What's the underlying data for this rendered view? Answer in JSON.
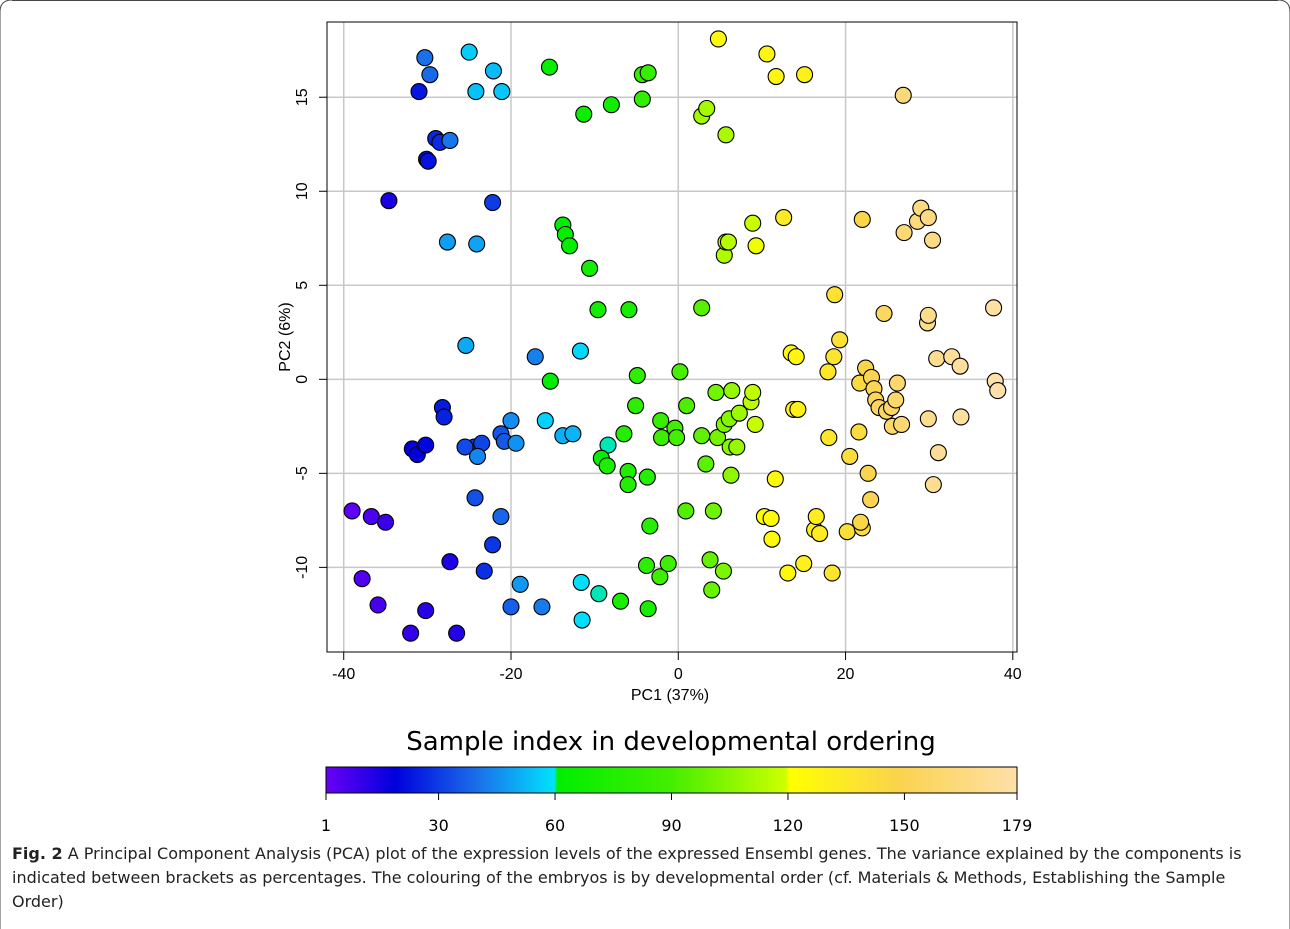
{
  "figure": {
    "label": "Fig. 2",
    "caption": "A Principal Component Analysis (PCA) plot of the expression levels of the expressed Ensembl genes. The variance explained by the components is indicated between brackets as percentages. The colouring of the embryos is by developmental order (cf. Materials & Methods, Establishing the Sample Order)"
  },
  "chart_data": {
    "type": "scatter",
    "xlabel": "PC1 (37%)",
    "ylabel": "PC2 (6%)",
    "xlim": [
      -42,
      40.5
    ],
    "ylim": [
      -14.5,
      19
    ],
    "xticks": [
      -40,
      -20,
      0,
      20,
      40
    ],
    "yticks": [
      -10,
      -5,
      0,
      5,
      10,
      15
    ],
    "grid": true,
    "colorbar": {
      "title": "Sample index in developmental ordering",
      "min": 1,
      "max": 179,
      "ticks": [
        1,
        30,
        60,
        90,
        120,
        150,
        179
      ],
      "stops": [
        {
          "at": 0.0,
          "color": "#6a00f5"
        },
        {
          "at": 0.1,
          "color": "#0000dd"
        },
        {
          "at": 0.22,
          "color": "#1a70ea"
        },
        {
          "at": 0.33,
          "color": "#00e2ff"
        },
        {
          "at": 0.335,
          "color": "#00ee00"
        },
        {
          "at": 0.5,
          "color": "#44ee00"
        },
        {
          "at": 0.665,
          "color": "#ccff00"
        },
        {
          "at": 0.67,
          "color": "#ffff00"
        },
        {
          "at": 0.83,
          "color": "#fad34e"
        },
        {
          "at": 1.0,
          "color": "#ffe0a8"
        }
      ]
    },
    "points": [
      {
        "x": -39.0,
        "y": -7.0,
        "c": 3
      },
      {
        "x": -37.8,
        "y": -10.6,
        "c": 5
      },
      {
        "x": -36.7,
        "y": -7.3,
        "c": 6
      },
      {
        "x": -35.9,
        "y": -12.0,
        "c": 7
      },
      {
        "x": -35.0,
        "y": -7.6,
        "c": 9
      },
      {
        "x": -32.0,
        "y": -13.5,
        "c": 10
      },
      {
        "x": -30.2,
        "y": -12.3,
        "c": 12
      },
      {
        "x": -26.5,
        "y": -13.5,
        "c": 13
      },
      {
        "x": -27.3,
        "y": -9.7,
        "c": 14
      },
      {
        "x": -34.6,
        "y": 9.5,
        "c": 15
      },
      {
        "x": -31.8,
        "y": -3.7,
        "c": 18
      },
      {
        "x": -31.2,
        "y": -4.0,
        "c": 19
      },
      {
        "x": -30.2,
        "y": -3.5,
        "c": 20
      },
      {
        "x": -30.1,
        "y": 11.7,
        "c": 21
      },
      {
        "x": -29.9,
        "y": 11.6,
        "c": 22
      },
      {
        "x": -31.0,
        "y": 15.3,
        "c": 23
      },
      {
        "x": -28.2,
        "y": -1.5,
        "c": 24
      },
      {
        "x": -28.0,
        "y": -2.0,
        "c": 25
      },
      {
        "x": -29.0,
        "y": 12.8,
        "c": 26
      },
      {
        "x": -28.5,
        "y": 12.6,
        "c": 27
      },
      {
        "x": -23.2,
        "y": -10.2,
        "c": 28
      },
      {
        "x": -22.2,
        "y": -8.8,
        "c": 29
      },
      {
        "x": -22.2,
        "y": 9.4,
        "c": 30
      },
      {
        "x": -24.4,
        "y": -3.6,
        "c": 31
      },
      {
        "x": -23.5,
        "y": -3.4,
        "c": 32
      },
      {
        "x": -25.5,
        "y": -3.6,
        "c": 33
      },
      {
        "x": -24.3,
        "y": -6.3,
        "c": 34
      },
      {
        "x": -21.2,
        "y": -2.9,
        "c": 35
      },
      {
        "x": -20.8,
        "y": -3.3,
        "c": 36
      },
      {
        "x": -20.0,
        "y": -12.1,
        "c": 37
      },
      {
        "x": -21.2,
        "y": -7.3,
        "c": 38
      },
      {
        "x": -29.7,
        "y": 16.2,
        "c": 39
      },
      {
        "x": -30.3,
        "y": 17.1,
        "c": 40
      },
      {
        "x": -27.3,
        "y": 12.7,
        "c": 41
      },
      {
        "x": -16.3,
        "y": -12.1,
        "c": 42
      },
      {
        "x": -17.1,
        "y": 1.2,
        "c": 43
      },
      {
        "x": -24.0,
        "y": -4.1,
        "c": 44
      },
      {
        "x": -20.0,
        "y": -2.2,
        "c": 45
      },
      {
        "x": -19.4,
        "y": -3.4,
        "c": 46
      },
      {
        "x": -18.9,
        "y": -10.9,
        "c": 47
      },
      {
        "x": -27.6,
        "y": 7.3,
        "c": 48
      },
      {
        "x": -24.1,
        "y": 7.2,
        "c": 49
      },
      {
        "x": -25.4,
        "y": 1.8,
        "c": 50
      },
      {
        "x": -13.8,
        "y": -3.0,
        "c": 51
      },
      {
        "x": -12.6,
        "y": -2.9,
        "c": 52
      },
      {
        "x": -22.1,
        "y": 16.4,
        "c": 53
      },
      {
        "x": -24.2,
        "y": 15.3,
        "c": 54
      },
      {
        "x": -21.1,
        "y": 15.3,
        "c": 55
      },
      {
        "x": -25.0,
        "y": 17.4,
        "c": 56
      },
      {
        "x": -15.9,
        "y": -2.2,
        "c": 57
      },
      {
        "x": -11.7,
        "y": 1.5,
        "c": 58
      },
      {
        "x": -11.5,
        "y": -12.8,
        "c": 59
      },
      {
        "x": -11.6,
        "y": -10.8,
        "c": 59
      },
      {
        "x": -9.5,
        "y": -11.4,
        "c": 60
      },
      {
        "x": -8.4,
        "y": -3.5,
        "c": 60
      },
      {
        "x": -15.3,
        "y": -0.1,
        "c": 61
      },
      {
        "x": -13.8,
        "y": 8.2,
        "c": 61
      },
      {
        "x": -13.5,
        "y": 7.7,
        "c": 62
      },
      {
        "x": -9.2,
        "y": -4.2,
        "c": 62
      },
      {
        "x": -13.0,
        "y": 7.1,
        "c": 63
      },
      {
        "x": -15.4,
        "y": 16.6,
        "c": 64
      },
      {
        "x": -11.3,
        "y": 14.1,
        "c": 66
      },
      {
        "x": -8.0,
        "y": 14.6,
        "c": 67
      },
      {
        "x": -10.6,
        "y": 5.9,
        "c": 68
      },
      {
        "x": -9.6,
        "y": 3.7,
        "c": 69
      },
      {
        "x": -5.9,
        "y": 3.7,
        "c": 70
      },
      {
        "x": -6.9,
        "y": -11.8,
        "c": 71
      },
      {
        "x": -3.6,
        "y": -12.2,
        "c": 72
      },
      {
        "x": -8.5,
        "y": -4.6,
        "c": 73
      },
      {
        "x": -6.0,
        "y": -4.9,
        "c": 74
      },
      {
        "x": -6.0,
        "y": -5.6,
        "c": 75
      },
      {
        "x": -6.5,
        "y": -2.9,
        "c": 76
      },
      {
        "x": -3.7,
        "y": -5.2,
        "c": 77
      },
      {
        "x": -3.4,
        "y": -7.8,
        "c": 78
      },
      {
        "x": -3.8,
        "y": -9.9,
        "c": 79
      },
      {
        "x": -5.1,
        "y": -1.4,
        "c": 80
      },
      {
        "x": -4.9,
        "y": 0.2,
        "c": 81
      },
      {
        "x": -4.3,
        "y": 14.9,
        "c": 82
      },
      {
        "x": -4.3,
        "y": 16.2,
        "c": 83
      },
      {
        "x": -3.6,
        "y": 16.3,
        "c": 84
      },
      {
        "x": -2.1,
        "y": -2.2,
        "c": 85
      },
      {
        "x": -2.0,
        "y": -3.1,
        "c": 86
      },
      {
        "x": -2.2,
        "y": -10.5,
        "c": 87
      },
      {
        "x": -1.2,
        "y": -9.8,
        "c": 88
      },
      {
        "x": -0.4,
        "y": -2.6,
        "c": 89
      },
      {
        "x": -0.2,
        "y": -3.1,
        "c": 90
      },
      {
        "x": 0.2,
        "y": 0.4,
        "c": 91
      },
      {
        "x": 1.0,
        "y": -1.4,
        "c": 92
      },
      {
        "x": 0.9,
        "y": -7.0,
        "c": 93
      },
      {
        "x": 2.8,
        "y": 3.8,
        "c": 94
      },
      {
        "x": 3.3,
        "y": -4.5,
        "c": 95
      },
      {
        "x": 2.8,
        "y": -3.0,
        "c": 96
      },
      {
        "x": 3.8,
        "y": -9.6,
        "c": 97
      },
      {
        "x": 4.0,
        "y": -11.2,
        "c": 98
      },
      {
        "x": 4.2,
        "y": -7.0,
        "c": 99
      },
      {
        "x": 4.5,
        "y": -0.7,
        "c": 100
      },
      {
        "x": 4.7,
        "y": -3.1,
        "c": 101
      },
      {
        "x": 5.4,
        "y": -10.2,
        "c": 102
      },
      {
        "x": 5.5,
        "y": -2.4,
        "c": 103
      },
      {
        "x": 6.1,
        "y": -2.1,
        "c": 104
      },
      {
        "x": 6.2,
        "y": -3.6,
        "c": 105
      },
      {
        "x": 6.3,
        "y": -5.1,
        "c": 106
      },
      {
        "x": 6.4,
        "y": -0.6,
        "c": 107
      },
      {
        "x": 7.0,
        "y": -3.6,
        "c": 108
      },
      {
        "x": 7.3,
        "y": -1.8,
        "c": 109
      },
      {
        "x": 2.8,
        "y": 14.0,
        "c": 110
      },
      {
        "x": 3.4,
        "y": 14.4,
        "c": 111
      },
      {
        "x": 5.7,
        "y": 13.0,
        "c": 112
      },
      {
        "x": 5.5,
        "y": 6.6,
        "c": 113
      },
      {
        "x": 5.7,
        "y": 7.3,
        "c": 114
      },
      {
        "x": 6.0,
        "y": 7.3,
        "c": 115
      },
      {
        "x": 8.7,
        "y": -1.2,
        "c": 116
      },
      {
        "x": 8.9,
        "y": -0.7,
        "c": 117
      },
      {
        "x": 9.2,
        "y": -2.4,
        "c": 118
      },
      {
        "x": 8.9,
        "y": 8.3,
        "c": 119
      },
      {
        "x": 9.3,
        "y": 7.1,
        "c": 120
      },
      {
        "x": 10.3,
        "y": -7.3,
        "c": 121
      },
      {
        "x": 11.1,
        "y": -7.4,
        "c": 122
      },
      {
        "x": 11.2,
        "y": -8.5,
        "c": 123
      },
      {
        "x": 11.6,
        "y": -5.3,
        "c": 124
      },
      {
        "x": 13.1,
        "y": -10.3,
        "c": 125
      },
      {
        "x": 13.5,
        "y": 1.4,
        "c": 126
      },
      {
        "x": 14.1,
        "y": 1.2,
        "c": 127
      },
      {
        "x": 13.8,
        "y": -1.6,
        "c": 128
      },
      {
        "x": 14.3,
        "y": -1.6,
        "c": 129
      },
      {
        "x": 15.0,
        "y": -9.8,
        "c": 130
      },
      {
        "x": 16.3,
        "y": -8.0,
        "c": 131
      },
      {
        "x": 16.5,
        "y": -7.3,
        "c": 132
      },
      {
        "x": 16.9,
        "y": -8.2,
        "c": 133
      },
      {
        "x": 12.6,
        "y": 8.6,
        "c": 134
      },
      {
        "x": 17.9,
        "y": 0.4,
        "c": 135
      },
      {
        "x": 18.0,
        "y": -3.1,
        "c": 136
      },
      {
        "x": 18.4,
        "y": -10.3,
        "c": 137
      },
      {
        "x": 18.6,
        "y": 1.2,
        "c": 138
      },
      {
        "x": 18.7,
        "y": 4.5,
        "c": 139
      },
      {
        "x": 19.3,
        "y": 2.1,
        "c": 140
      },
      {
        "x": 20.2,
        "y": -8.1,
        "c": 141
      },
      {
        "x": 20.5,
        "y": -4.1,
        "c": 142
      },
      {
        "x": 21.6,
        "y": -2.8,
        "c": 143
      },
      {
        "x": 21.7,
        "y": -0.2,
        "c": 144
      },
      {
        "x": 22.0,
        "y": -7.9,
        "c": 145
      },
      {
        "x": 21.8,
        "y": -7.6,
        "c": 146
      },
      {
        "x": 22.0,
        "y": 8.5,
        "c": 147
      },
      {
        "x": 22.4,
        "y": 0.6,
        "c": 148
      },
      {
        "x": 22.7,
        "y": -5.0,
        "c": 149
      },
      {
        "x": 23.0,
        "y": -6.4,
        "c": 150
      },
      {
        "x": 23.1,
        "y": 0.1,
        "c": 151
      },
      {
        "x": 23.4,
        "y": -0.5,
        "c": 152
      },
      {
        "x": 23.6,
        "y": -1.1,
        "c": 153
      },
      {
        "x": 24.0,
        "y": -1.5,
        "c": 154
      },
      {
        "x": 24.6,
        "y": 3.5,
        "c": 155
      },
      {
        "x": 24.9,
        "y": -1.7,
        "c": 156
      },
      {
        "x": 25.5,
        "y": -1.5,
        "c": 157
      },
      {
        "x": 25.6,
        "y": -2.5,
        "c": 158
      },
      {
        "x": 26.0,
        "y": -1.1,
        "c": 159
      },
      {
        "x": 26.2,
        "y": -0.2,
        "c": 160
      },
      {
        "x": 26.7,
        "y": -2.4,
        "c": 161
      },
      {
        "x": 27.0,
        "y": 7.8,
        "c": 162
      },
      {
        "x": 26.9,
        "y": 15.1,
        "c": 163
      },
      {
        "x": 10.6,
        "y": 17.3,
        "c": 126
      },
      {
        "x": 11.7,
        "y": 16.1,
        "c": 127
      },
      {
        "x": 15.1,
        "y": 16.2,
        "c": 129
      },
      {
        "x": 4.8,
        "y": 18.1,
        "c": 124
      },
      {
        "x": 28.6,
        "y": 8.4,
        "c": 164
      },
      {
        "x": 29.0,
        "y": 9.1,
        "c": 165
      },
      {
        "x": 29.9,
        "y": 8.6,
        "c": 166
      },
      {
        "x": 30.4,
        "y": 7.4,
        "c": 167
      },
      {
        "x": 29.8,
        "y": 3.0,
        "c": 168
      },
      {
        "x": 29.9,
        "y": 3.4,
        "c": 169
      },
      {
        "x": 29.9,
        "y": -2.1,
        "c": 170
      },
      {
        "x": 30.5,
        "y": -5.6,
        "c": 171
      },
      {
        "x": 30.9,
        "y": 1.1,
        "c": 172
      },
      {
        "x": 31.1,
        "y": -3.9,
        "c": 173
      },
      {
        "x": 32.7,
        "y": 1.2,
        "c": 174
      },
      {
        "x": 33.7,
        "y": 0.7,
        "c": 175
      },
      {
        "x": 33.8,
        "y": -2.0,
        "c": 176
      },
      {
        "x": 37.7,
        "y": 3.8,
        "c": 177
      },
      {
        "x": 37.9,
        "y": -0.1,
        "c": 178
      },
      {
        "x": 38.2,
        "y": -0.6,
        "c": 179
      }
    ]
  }
}
